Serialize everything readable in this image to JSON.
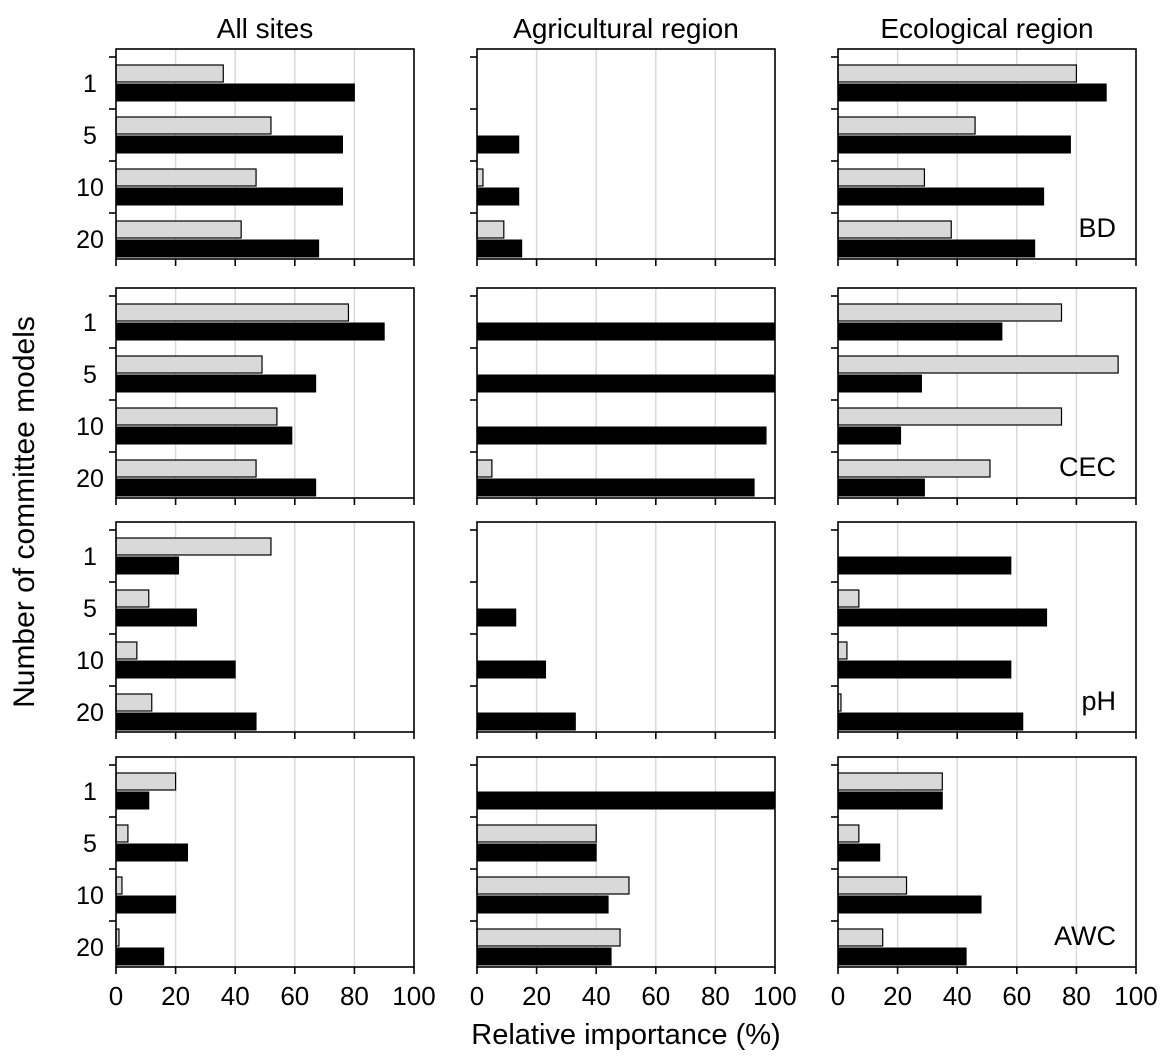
{
  "figure": {
    "column_titles": [
      "All sites",
      "Agricultural region",
      "Ecological region"
    ],
    "y_axis_label": "Number of committee models",
    "x_axis_label": "Relative importance (%)"
  },
  "colors": {
    "series_light": "#d9d9d9",
    "series_dark": "#000000",
    "gridline": "#d9d9d9",
    "frame": "#000000"
  },
  "chart_data": {
    "type": "bar",
    "orientation": "horizontal",
    "categories": [
      "1",
      "5",
      "10",
      "20"
    ],
    "xlim": [
      0,
      100
    ],
    "xticks": [
      "0",
      "20",
      "40",
      "60",
      "80",
      "100"
    ],
    "grid": true,
    "series_order": [
      "light",
      "dark"
    ],
    "panels": [
      {
        "row": 0,
        "col": 0,
        "label": "",
        "light": [
          36,
          52,
          47,
          42
        ],
        "dark": [
          80,
          76,
          76,
          68
        ]
      },
      {
        "row": 0,
        "col": 1,
        "label": "",
        "light": [
          0,
          0,
          2,
          9
        ],
        "dark": [
          0,
          14,
          14,
          15
        ]
      },
      {
        "row": 0,
        "col": 2,
        "label": "BD",
        "light": [
          80,
          46,
          29,
          38
        ],
        "dark": [
          90,
          78,
          69,
          66
        ]
      },
      {
        "row": 1,
        "col": 0,
        "label": "",
        "light": [
          78,
          49,
          54,
          47
        ],
        "dark": [
          90,
          67,
          59,
          67
        ]
      },
      {
        "row": 1,
        "col": 1,
        "label": "",
        "light": [
          0,
          0,
          0,
          5
        ],
        "dark": [
          100,
          100,
          97,
          93
        ]
      },
      {
        "row": 1,
        "col": 2,
        "label": "CEC",
        "light": [
          75,
          94,
          75,
          51
        ],
        "dark": [
          55,
          28,
          21,
          29
        ]
      },
      {
        "row": 2,
        "col": 0,
        "label": "",
        "light": [
          52,
          11,
          7,
          12
        ],
        "dark": [
          21,
          27,
          40,
          47
        ]
      },
      {
        "row": 2,
        "col": 1,
        "label": "",
        "light": [
          0,
          0,
          0,
          0
        ],
        "dark": [
          0,
          13,
          23,
          33
        ]
      },
      {
        "row": 2,
        "col": 2,
        "label": "pH",
        "light": [
          0,
          7,
          3,
          1
        ],
        "dark": [
          58,
          70,
          58,
          62
        ]
      },
      {
        "row": 3,
        "col": 0,
        "label": "",
        "light": [
          20,
          4,
          2,
          1
        ],
        "dark": [
          11,
          24,
          20,
          16
        ]
      },
      {
        "row": 3,
        "col": 1,
        "label": "",
        "light": [
          0,
          40,
          51,
          48
        ],
        "dark": [
          100,
          40,
          44,
          45
        ]
      },
      {
        "row": 3,
        "col": 2,
        "label": "AWC",
        "light": [
          35,
          7,
          23,
          15
        ],
        "dark": [
          35,
          14,
          48,
          43
        ]
      }
    ]
  }
}
